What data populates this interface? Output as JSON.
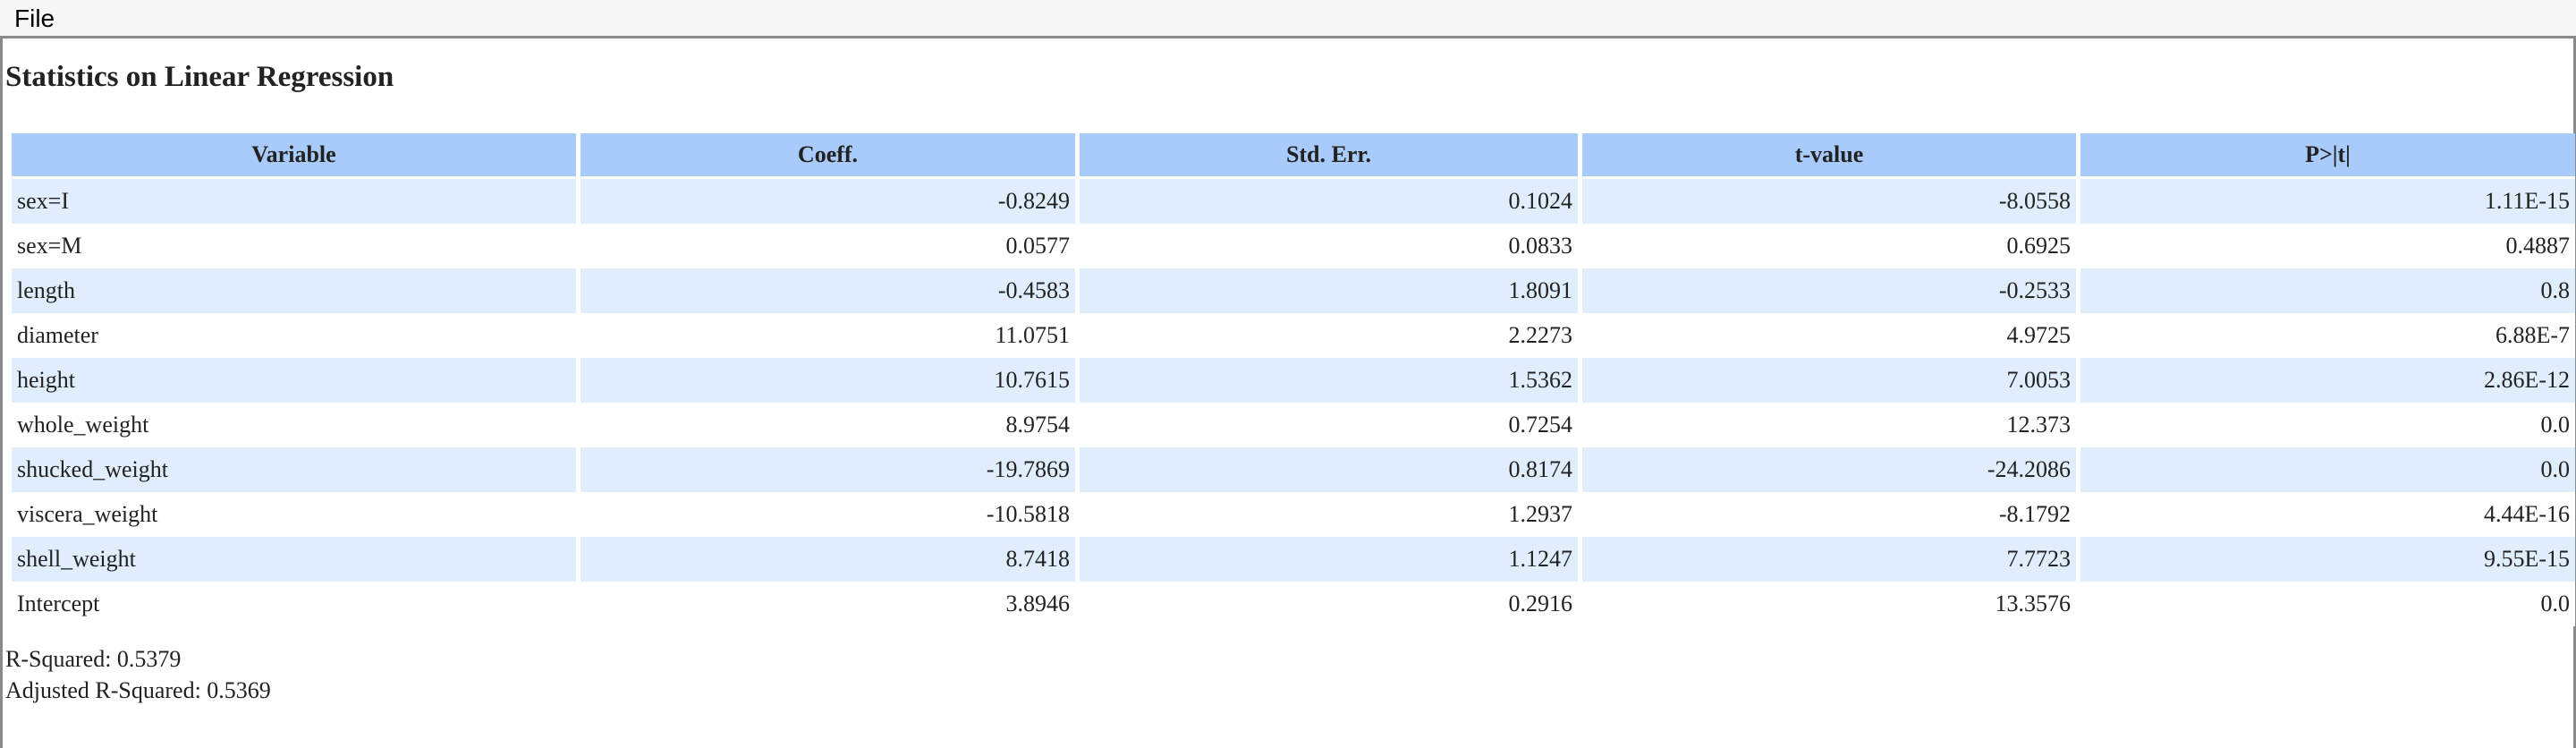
{
  "menu": {
    "file_label": "File"
  },
  "page": {
    "title": "Statistics on Linear Regression"
  },
  "table": {
    "headers": [
      "Variable",
      "Coeff.",
      "Std. Err.",
      "t-value",
      "P>|t|"
    ],
    "rows": [
      [
        "sex=I",
        "-0.8249",
        "0.1024",
        "-8.0558",
        "1.11E-15"
      ],
      [
        "sex=M",
        "0.0577",
        "0.0833",
        "0.6925",
        "0.4887"
      ],
      [
        "length",
        "-0.4583",
        "1.8091",
        "-0.2533",
        "0.8"
      ],
      [
        "diameter",
        "11.0751",
        "2.2273",
        "4.9725",
        "6.88E-7"
      ],
      [
        "height",
        "10.7615",
        "1.5362",
        "7.0053",
        "2.86E-12"
      ],
      [
        "whole_weight",
        "8.9754",
        "0.7254",
        "12.373",
        "0.0"
      ],
      [
        "shucked_weight",
        "-19.7869",
        "0.8174",
        "-24.2086",
        "0.0"
      ],
      [
        "viscera_weight",
        "-10.5818",
        "1.2937",
        "-8.1792",
        "4.44E-16"
      ],
      [
        "shell_weight",
        "8.7418",
        "1.1247",
        "7.7723",
        "9.55E-15"
      ],
      [
        "Intercept",
        "3.8946",
        "0.2916",
        "13.3576",
        "0.0"
      ]
    ]
  },
  "summary": {
    "r_squared": "R-Squared: 0.5379",
    "adjusted_r_squared": "Adjusted R-Squared: 0.5369"
  },
  "colors": {
    "header_bg": "#a9cbfb",
    "stripe_bg": "#dfedfd"
  }
}
